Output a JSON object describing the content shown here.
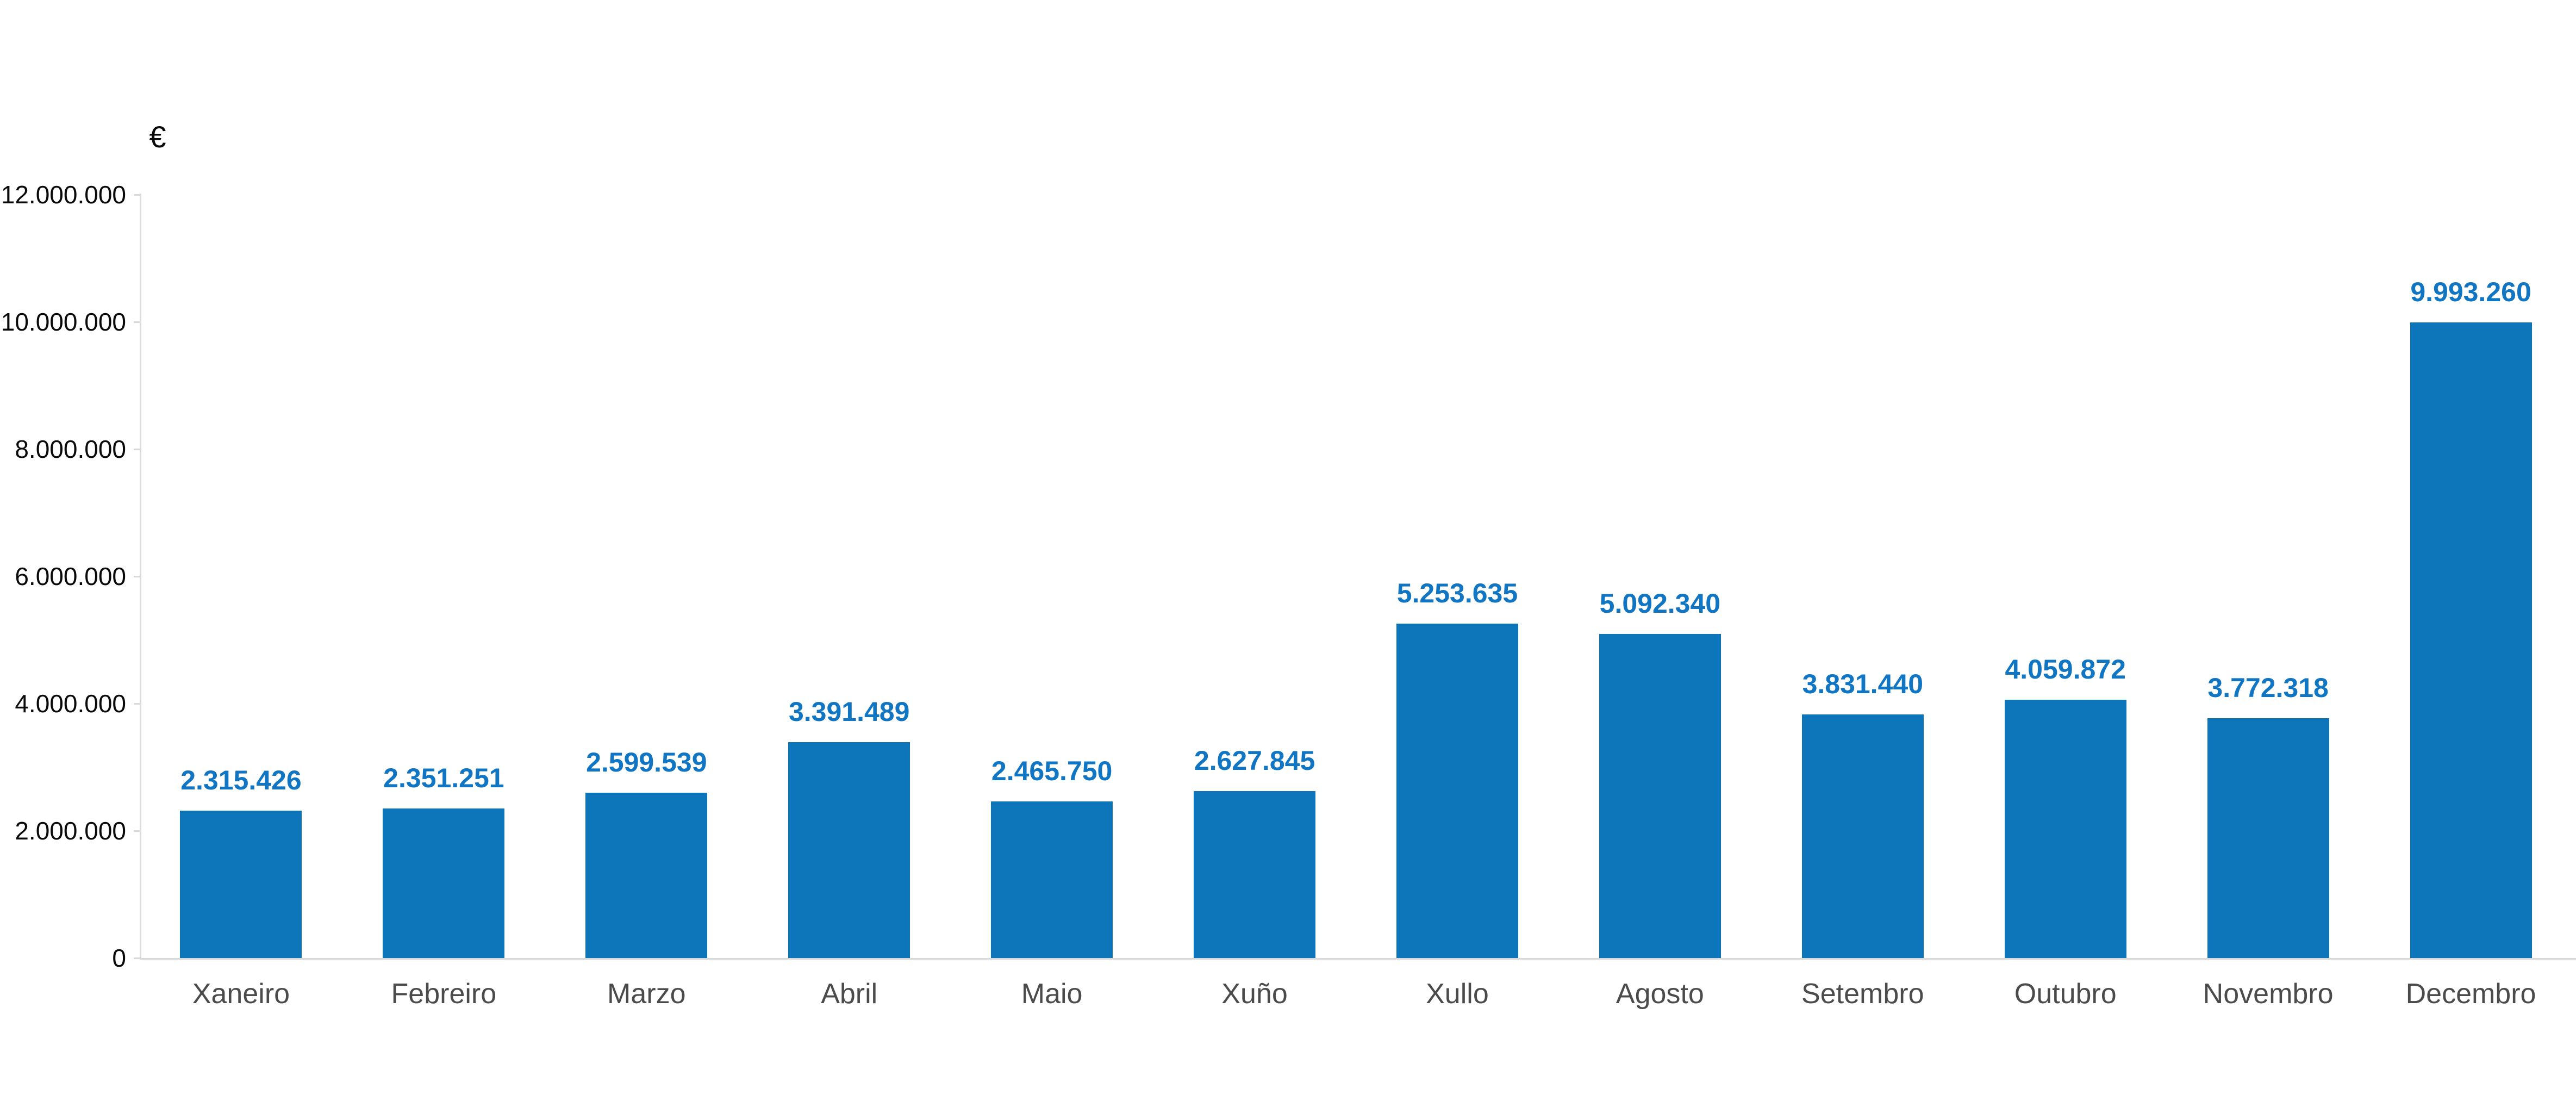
{
  "chart_data": {
    "type": "bar",
    "title": "",
    "y_axis_unit": "€",
    "categories": [
      "Xaneiro",
      "Febreiro",
      "Marzo",
      "Abril",
      "Maio",
      "Xuño",
      "Xullo",
      "Agosto",
      "Setembro",
      "Outubro",
      "Novembro",
      "Decembro"
    ],
    "values": [
      2315426,
      2351251,
      2599539,
      3391489,
      2465750,
      2627845,
      5253635,
      5092340,
      3831440,
      4059872,
      3772318,
      9993260
    ],
    "value_labels": [
      "2.315.426",
      "2.351.251",
      "2.599.539",
      "3.391.489",
      "2.465.750",
      "2.627.845",
      "5.253.635",
      "5.092.340",
      "3.831.440",
      "4.059.872",
      "3.772.318",
      "9.993.260"
    ],
    "ylim": [
      0,
      12000000
    ],
    "ytick_values": [
      0,
      2000000,
      4000000,
      6000000,
      8000000,
      10000000,
      12000000
    ],
    "ytick_labels": [
      "0",
      "2.000.000",
      "4.000.000",
      "6.000.000",
      "8.000.000",
      "10.000.000",
      "12.000.000"
    ],
    "grid": false,
    "legend": false,
    "colors": {
      "bar": "#0d75ba",
      "value_label": "#1076c4",
      "category_label": "#4b4b4b",
      "tick_label": "#0a0a0a",
      "axis_line": "#d9d9d9"
    }
  }
}
